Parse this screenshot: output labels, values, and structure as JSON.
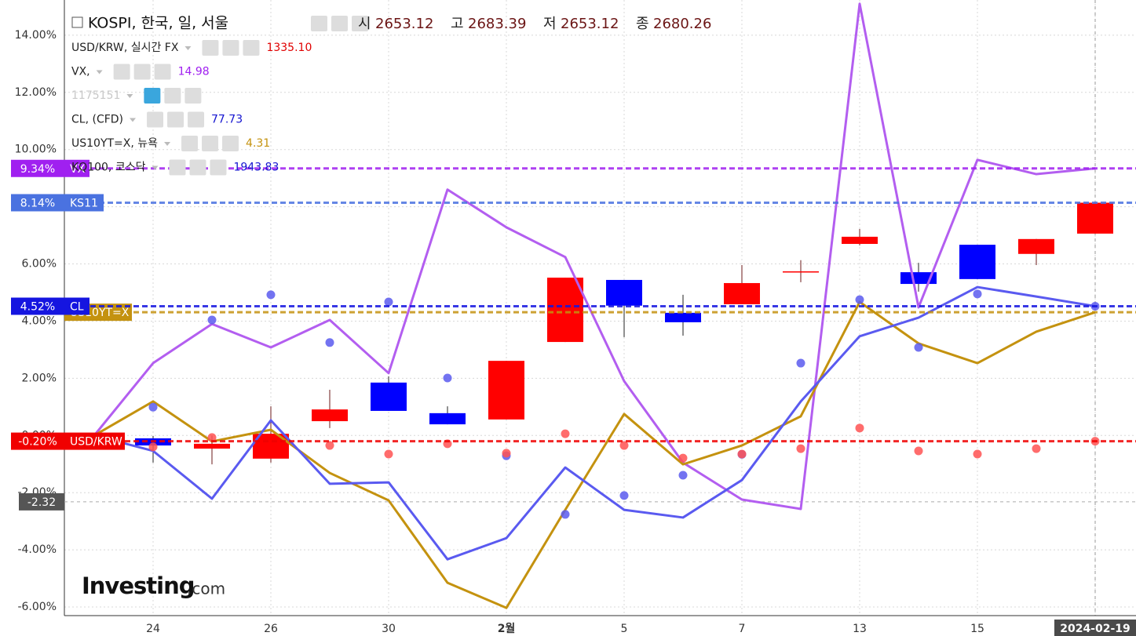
{
  "chart_data": {
    "type": "candlestick",
    "categories": [
      null,
      "24",
      null,
      "26",
      null,
      "30",
      null,
      "2월",
      null,
      "5",
      null,
      "7",
      null,
      "13",
      null,
      "15",
      null,
      "2024-02-19"
    ],
    "ylim": [
      -6.3,
      15.23
    ],
    "yticks": [
      {
        "value": 14,
        "label": "14.00%"
      },
      {
        "value": 12,
        "label": "12.00%"
      },
      {
        "value": 10,
        "label": "10.00%"
      },
      {
        "value": 8,
        "label": "8.00%"
      },
      {
        "value": 6,
        "label": "6.00%"
      },
      {
        "value": 4,
        "label": "4.00%"
      },
      {
        "value": 2,
        "label": "2.00%"
      },
      {
        "value": 0,
        "label": "0.00%"
      },
      {
        "value": -2,
        "label": "-2.00%"
      },
      {
        "value": -4,
        "label": "-4.00%"
      },
      {
        "value": -6,
        "label": "-6.00%"
      }
    ],
    "grid": true,
    "up_color": "#ff0000",
    "down_color": "#0000ff",
    "candles": {
      "open": [
        null,
        -0.1,
        -0.46,
        -0.81,
        0.5,
        1.85,
        0.78,
        0.56,
        3.27,
        5.44,
        4.29,
        4.59,
        5.71,
        6.7,
        5.71,
        6.67,
        6.35,
        7.06
      ],
      "high": [
        null,
        -0.02,
        0.0,
        1.02,
        1.6,
        2.07,
        1.02,
        2.61,
        5.52,
        5.44,
        4.92,
        5.96,
        6.13,
        7.22,
        6.04,
        6.67,
        6.87,
        8.14
      ],
      "low": [
        null,
        -0.95,
        -1.01,
        -0.95,
        0.26,
        0.86,
        0.39,
        0.56,
        3.27,
        3.44,
        3.49,
        4.59,
        5.36,
        6.65,
        5.03,
        5.47,
        5.96,
        7.06
      ],
      "close": [
        null,
        -0.35,
        -0.29,
        0.06,
        0.91,
        0.86,
        0.39,
        2.61,
        5.52,
        4.54,
        3.96,
        5.33,
        5.74,
        6.95,
        5.3,
        5.47,
        6.87,
        8.14
      ]
    },
    "series": [
      {
        "type": "line",
        "color": "#b35ef0",
        "values": [
          0,
          2.53,
          3.9,
          3.08,
          4.04,
          2.18,
          8.6,
          7.28,
          6.24,
          1.9,
          -0.95,
          -2.24,
          -2.57,
          15.1,
          4.48,
          9.64,
          9.14,
          9.34
        ]
      },
      {
        "type": "line",
        "color": "#c4920f",
        "values": [
          0,
          1.19,
          -0.21,
          0.2,
          -1.31,
          -2.27,
          -5.15,
          -6.03,
          -2.6,
          0.75,
          -1.01,
          -0.35,
          0.67,
          4.67,
          3.22,
          2.53,
          3.63,
          4.31
        ]
      },
      {
        "type": "line",
        "color": "#5a5af0",
        "values": [
          0,
          -0.54,
          -2.21,
          0.53,
          -1.69,
          -1.64,
          -4.33,
          -3.59,
          -1.12,
          -2.6,
          -2.87,
          -1.56,
          1.19,
          3.47,
          4.12,
          5.19,
          4.86,
          4.52
        ]
      },
      {
        "type": "scatter",
        "color": "#5a5aee",
        "values": [
          null,
          0.99,
          4.04,
          4.92,
          3.25,
          4.67,
          2.01,
          -0.71,
          -2.76,
          -2.1,
          -1.39,
          -0.66,
          2.53,
          4.75,
          3.08,
          4.95,
          null,
          4.52
        ]
      },
      {
        "type": "scatter",
        "color": "#ff5252",
        "values": [
          null,
          -0.4,
          -0.07,
          null,
          -0.35,
          -0.65,
          -0.29,
          -0.62,
          0.06,
          -0.35,
          -0.79,
          -0.65,
          -0.46,
          0.26,
          -0.54,
          -0.65,
          -0.46,
          -0.2
        ]
      }
    ],
    "badges": [
      {
        "value": 9.34,
        "label": "9.34%",
        "name": "VX",
        "color": "#a020f0"
      },
      {
        "value": 8.14,
        "label": "8.14%",
        "name": "KS11",
        "color": "#4a72e0"
      },
      {
        "value": 4.31,
        "name": "US10YT=X",
        "color": "#c4920f"
      },
      {
        "value": 4.52,
        "label": "4.52%",
        "name": "CL",
        "color": "#1515e0"
      },
      {
        "value": -0.2,
        "label": "-0.20%",
        "name": "USD/KRW",
        "color": "#f00000"
      }
    ],
    "crosshair": -2.32,
    "header": {
      "title": "KOSPI, 한국, 일, 서울",
      "fields": [
        [
          "시",
          "2653.12"
        ],
        [
          "고",
          "2683.39"
        ],
        [
          "저",
          "2653.12"
        ],
        [
          "종",
          "2680.26"
        ]
      ]
    },
    "legend": [
      {
        "name": "USD/KRW, 실시간 FX",
        "value": "1335.10",
        "color": "#e00000"
      },
      {
        "name": "VX,",
        "value": "14.98",
        "color": "#a020f0"
      },
      {
        "name": "1175151",
        "color": "#c8c8c8"
      },
      {
        "name": "CL, (CFD)",
        "value": "77.73",
        "color": "#1515d0"
      },
      {
        "name": "US10YT=X, 뉴욕",
        "value": "4.31",
        "color": "#c4920f"
      },
      {
        "name": "KQ100, 코스닥",
        "value": "1943.83",
        "color": "#1515d0"
      }
    ],
    "watermark": [
      "Investing",
      ".com"
    ]
  }
}
